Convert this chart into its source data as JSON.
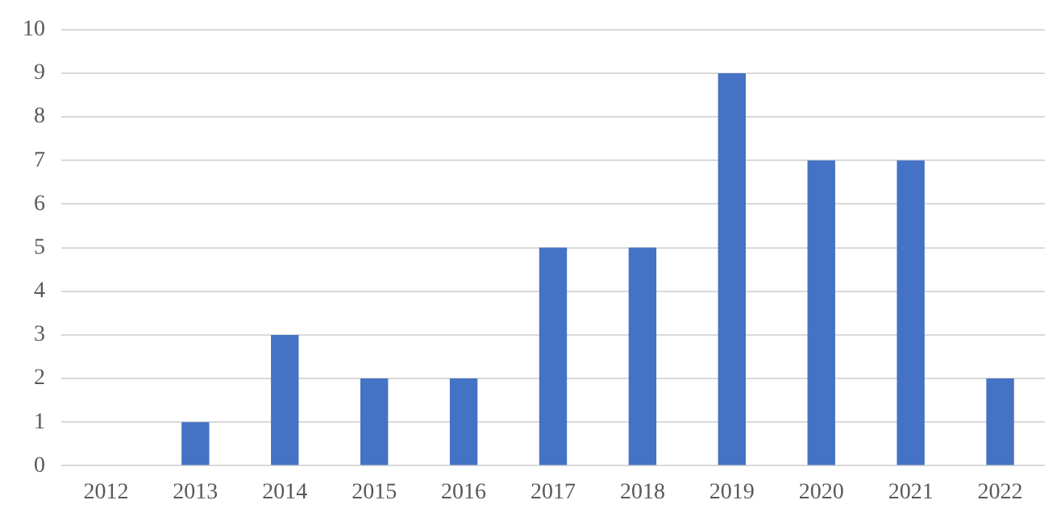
{
  "chart_data": {
    "type": "bar",
    "categories": [
      "2012",
      "2013",
      "2014",
      "2015",
      "2016",
      "2017",
      "2018",
      "2019",
      "2020",
      "2021",
      "2022"
    ],
    "values": [
      0,
      1,
      3,
      2,
      2,
      5,
      5,
      9,
      7,
      7,
      2
    ],
    "color": "#4472c4",
    "ylim": [
      0,
      10
    ],
    "yticks": [
      0,
      1,
      2,
      3,
      4,
      5,
      6,
      7,
      8,
      9,
      10
    ],
    "grid": "y"
  }
}
